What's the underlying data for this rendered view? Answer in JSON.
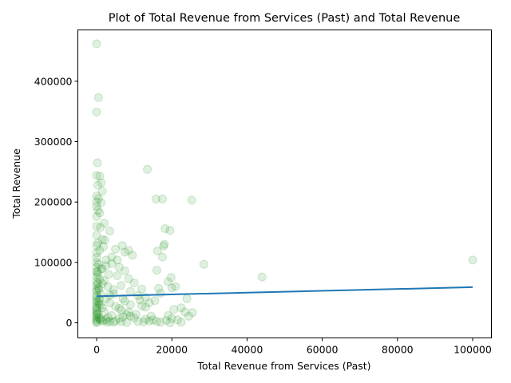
{
  "chart_data": {
    "type": "scatter",
    "title": "Plot of Total Revenue from Services (Past) and Total Revenue",
    "xlabel": "Total Revenue from Services (Past)",
    "ylabel": "Total Revenue",
    "xlim": [
      -5000,
      105000
    ],
    "ylim": [
      -25000,
      485000
    ],
    "x_ticks": [
      0,
      20000,
      40000,
      60000,
      80000,
      100000
    ],
    "y_ticks": [
      0,
      100000,
      200000,
      300000,
      400000
    ],
    "grid": false,
    "point_color": "#008000",
    "point_alpha": 0.12,
    "line_color": "#1f77b4",
    "series": [
      {
        "name": "observations",
        "points": [
          [
            0,
            462000
          ],
          [
            500,
            373000
          ],
          [
            0,
            349000
          ],
          [
            200,
            265000
          ],
          [
            0,
            244000
          ],
          [
            800,
            243000
          ],
          [
            1200,
            232000
          ],
          [
            300,
            228000
          ],
          [
            1500,
            218000
          ],
          [
            0,
            210000
          ],
          [
            500,
            206000
          ],
          [
            0,
            200000
          ],
          [
            1200,
            199000
          ],
          [
            0,
            193000
          ],
          [
            300,
            186000
          ],
          [
            800,
            182000
          ],
          [
            0,
            176000
          ],
          [
            2000,
            165000
          ],
          [
            0,
            160000
          ],
          [
            1000,
            158000
          ],
          [
            3500,
            152000
          ],
          [
            0,
            145000
          ],
          [
            1500,
            138000
          ],
          [
            2200,
            137000
          ],
          [
            300,
            132000
          ],
          [
            0,
            128000
          ],
          [
            1800,
            126000
          ],
          [
            800,
            120000
          ],
          [
            0,
            116000
          ],
          [
            0,
            108000
          ],
          [
            2500,
            104000
          ],
          [
            0,
            100000
          ],
          [
            500,
            97000
          ],
          [
            0,
            92000
          ],
          [
            1200,
            89000
          ],
          [
            0,
            84000
          ],
          [
            300,
            80000
          ],
          [
            0,
            76000
          ],
          [
            800,
            72000
          ],
          [
            0,
            68000
          ],
          [
            1500,
            65000
          ],
          [
            0,
            62000
          ],
          [
            500,
            58000
          ],
          [
            0,
            55000
          ],
          [
            0,
            52000
          ],
          [
            1000,
            48000
          ],
          [
            0,
            45000
          ],
          [
            0,
            42000
          ],
          [
            800,
            40000
          ],
          [
            0,
            37000
          ],
          [
            0,
            34000
          ],
          [
            600,
            31000
          ],
          [
            0,
            28000
          ],
          [
            0,
            25000
          ],
          [
            0,
            22000
          ],
          [
            0,
            19000
          ],
          [
            0,
            16000
          ],
          [
            0,
            13000
          ],
          [
            0,
            10000
          ],
          [
            0,
            7000
          ],
          [
            0,
            4000
          ],
          [
            0,
            2000
          ],
          [
            0,
            0
          ],
          [
            300,
            65000
          ],
          [
            500,
            35000
          ],
          [
            400,
            15000
          ],
          [
            200,
            85000
          ],
          [
            600,
            55000
          ],
          [
            13500,
            254000
          ],
          [
            15800,
            205000
          ],
          [
            17500,
            205000
          ],
          [
            25300,
            203000
          ],
          [
            18200,
            156000
          ],
          [
            19500,
            153000
          ],
          [
            18000,
            130000
          ],
          [
            17800,
            127000
          ],
          [
            16200,
            119000
          ],
          [
            17500,
            109000
          ],
          [
            28500,
            97000
          ],
          [
            16000,
            87000
          ],
          [
            19800,
            75000
          ],
          [
            44000,
            76000
          ],
          [
            20000,
            58000
          ],
          [
            16500,
            57000
          ],
          [
            19000,
            68000
          ],
          [
            100000,
            104000
          ],
          [
            5000,
            122000
          ],
          [
            6800,
            128000
          ],
          [
            7500,
            117000
          ],
          [
            8500,
            120000
          ],
          [
            9500,
            112000
          ],
          [
            4000,
            109000
          ],
          [
            5500,
            104000
          ],
          [
            6000,
            92000
          ],
          [
            7500,
            86000
          ],
          [
            3200,
            80000
          ],
          [
            5500,
            78000
          ],
          [
            8500,
            73000
          ],
          [
            10000,
            66000
          ],
          [
            6500,
            62000
          ],
          [
            12000,
            56000
          ],
          [
            9000,
            52000
          ],
          [
            4500,
            48000
          ],
          [
            11000,
            45000
          ],
          [
            7000,
            40000
          ],
          [
            13000,
            42000
          ],
          [
            15500,
            37000
          ],
          [
            14000,
            33000
          ],
          [
            9000,
            30000
          ],
          [
            12000,
            28000
          ],
          [
            6000,
            24000
          ],
          [
            20500,
            22000
          ],
          [
            22500,
            25000
          ],
          [
            23500,
            18000
          ],
          [
            25500,
            17000
          ],
          [
            24500,
            11000
          ],
          [
            19000,
            12000
          ],
          [
            20000,
            7000
          ],
          [
            21500,
            5000
          ],
          [
            18500,
            4000
          ],
          [
            19500,
            0
          ],
          [
            17000,
            1000
          ],
          [
            14000,
            3000
          ],
          [
            13000,
            6000
          ],
          [
            11000,
            2000
          ],
          [
            10000,
            8000
          ],
          [
            9000,
            11000
          ],
          [
            8000,
            14000
          ],
          [
            7000,
            10000
          ],
          [
            6000,
            7000
          ],
          [
            5000,
            3000
          ],
          [
            4000,
            12000
          ],
          [
            3000,
            9000
          ],
          [
            2500,
            5000
          ],
          [
            2000,
            18000
          ],
          [
            1500,
            25000
          ],
          [
            1000,
            30000
          ],
          [
            2500,
            40000
          ],
          [
            3500,
            46000
          ],
          [
            4500,
            55000
          ],
          [
            3000,
            60000
          ],
          [
            2000,
            70000
          ],
          [
            1500,
            90000
          ],
          [
            2500,
            95000
          ],
          [
            4000,
            98000
          ],
          [
            12500,
            1500
          ],
          [
            16000,
            2500
          ],
          [
            22500,
            1000
          ],
          [
            8000,
            500
          ],
          [
            6500,
            2000
          ],
          [
            4500,
            1000
          ],
          [
            3500,
            2500
          ],
          [
            2800,
            1000
          ],
          [
            1800,
            3000
          ],
          [
            1200,
            4000
          ],
          [
            900,
            6000
          ],
          [
            700,
            8000
          ],
          [
            10500,
            14000
          ],
          [
            8500,
            18000
          ],
          [
            6500,
            21000
          ],
          [
            5000,
            27000
          ],
          [
            3500,
            33000
          ],
          [
            7500,
            36000
          ],
          [
            11500,
            38000
          ],
          [
            14500,
            11000
          ],
          [
            15000,
            5000
          ],
          [
            24000,
            40000
          ],
          [
            21000,
            60000
          ],
          [
            17000,
            49000
          ],
          [
            13000,
            26000
          ]
        ]
      }
    ],
    "regression_line": {
      "x": [
        0,
        100000
      ],
      "y": [
        44000,
        59000
      ]
    }
  }
}
